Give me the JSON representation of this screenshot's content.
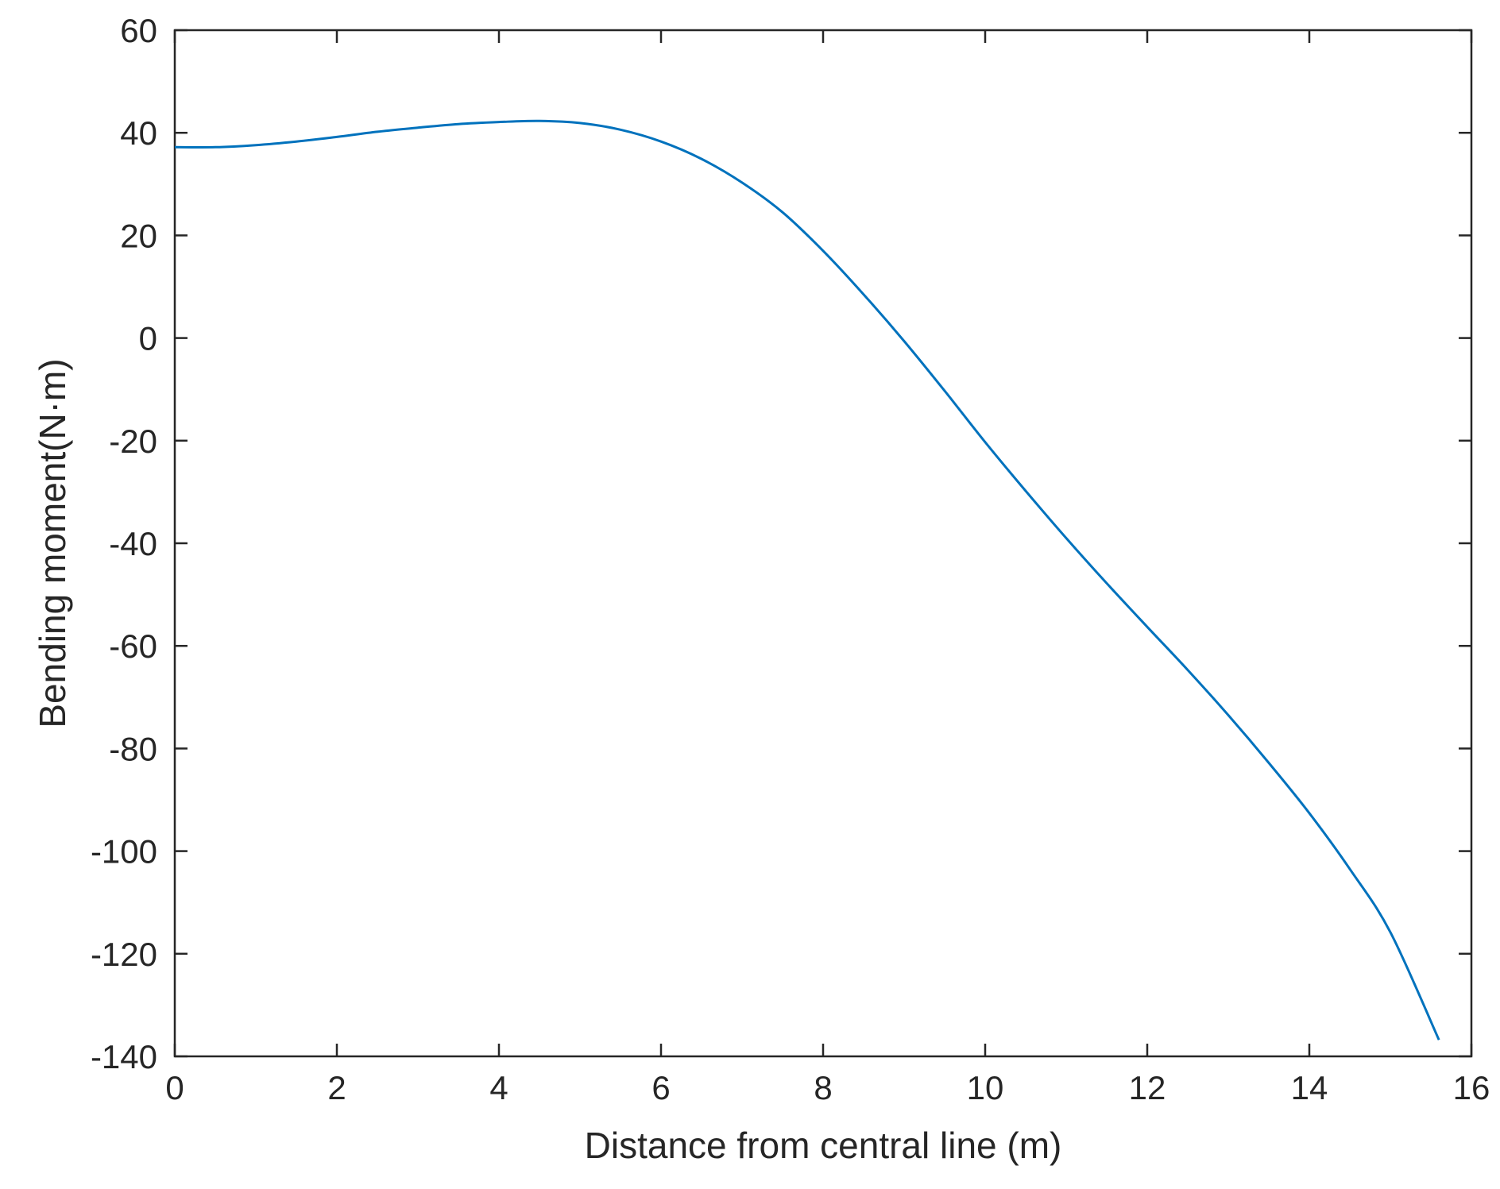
{
  "chart_data": {
    "type": "line",
    "title": "",
    "xlabel": "Distance from central line (m)",
    "ylabel": "Bending moment(N·m)",
    "xlim": [
      0,
      16
    ],
    "ylim": [
      -140,
      60
    ],
    "xticks": [
      0,
      2,
      4,
      6,
      8,
      10,
      12,
      14,
      16
    ],
    "yticks": [
      60,
      40,
      20,
      0,
      -20,
      -40,
      -60,
      -80,
      -100,
      -120,
      -140
    ],
    "grid": false,
    "legend": "none",
    "series": [
      {
        "color": "#0072BD",
        "x": [
          0,
          0.5,
          1,
          1.5,
          2,
          2.5,
          3,
          3.5,
          4,
          4.5,
          5,
          5.5,
          6,
          6.5,
          7,
          7.5,
          8,
          8.5,
          9,
          9.5,
          10,
          10.5,
          11,
          11.5,
          12,
          12.5,
          13,
          13.5,
          14,
          14.5,
          15,
          15.6
        ],
        "y": [
          37.2,
          37.2,
          37.6,
          38.3,
          39.2,
          40.2,
          41.0,
          41.7,
          42.1,
          42.3,
          41.9,
          40.6,
          38.3,
          34.9,
          30.3,
          24.5,
          17.0,
          8.5,
          -0.6,
          -10.3,
          -20.3,
          -29.8,
          -39.0,
          -47.8,
          -56.3,
          -64.7,
          -73.5,
          -82.8,
          -92.6,
          -103.5,
          -115.8,
          -136.8
        ]
      }
    ]
  }
}
